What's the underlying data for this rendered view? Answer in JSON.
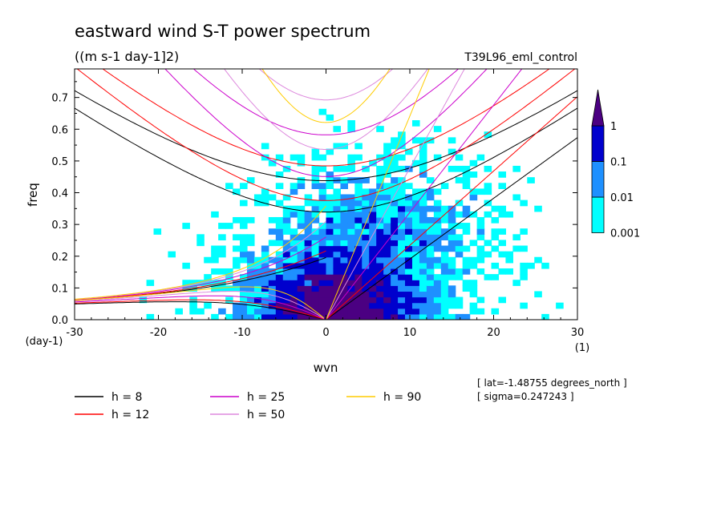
{
  "chart_data": {
    "type": "heatmap",
    "title": "eastward wind S-T power spectrum",
    "subtitle": "((m s-1 day-1]2)",
    "run_label": "T39L96_eml_control",
    "xlabel": "wvn",
    "ylabel": "freq",
    "x_unit": "(1)",
    "y_unit": "(day-1)",
    "xlim": [
      -30,
      30
    ],
    "ylim": [
      0,
      0.79
    ],
    "xticks": [
      -30,
      -20,
      -10,
      0,
      10,
      20,
      30
    ],
    "xtick_labels": [
      "-30",
      "-20",
      "-10",
      "0",
      "10",
      "20",
      "30"
    ],
    "yticks": [
      0,
      0.1,
      0.2,
      0.3,
      0.4,
      0.5,
      0.6,
      0.7
    ],
    "ytick_labels": [
      "0.0",
      "0.1",
      "0.2",
      "0.3",
      "0.4",
      "0.5",
      "0.6",
      "0.7"
    ],
    "colorbar": {
      "levels": [
        0.001,
        0.01,
        0.1,
        1
      ],
      "labels": [
        "0.001",
        "0.01",
        "0.1",
        "1"
      ],
      "colors": [
        "#00ffff",
        "#1e90ff",
        "#0000cd",
        "#4b0082"
      ]
    },
    "dispersion_curves": [
      {
        "label": "h =  8",
        "h": 8,
        "color": "#000000"
      },
      {
        "label": "h = 12",
        "h": 12,
        "color": "#ff0000"
      },
      {
        "label": "h = 25",
        "h": 25,
        "color": "#cc00cc"
      },
      {
        "label": "h = 50",
        "h": 50,
        "color": "#dd88dd"
      },
      {
        "label": "h = 90",
        "h": 90,
        "color": "#ffcc00"
      }
    ],
    "info_lines": [
      "[ lat=-1.48755 degrees_north ]",
      "[ sigma=0.247243 ]"
    ]
  }
}
